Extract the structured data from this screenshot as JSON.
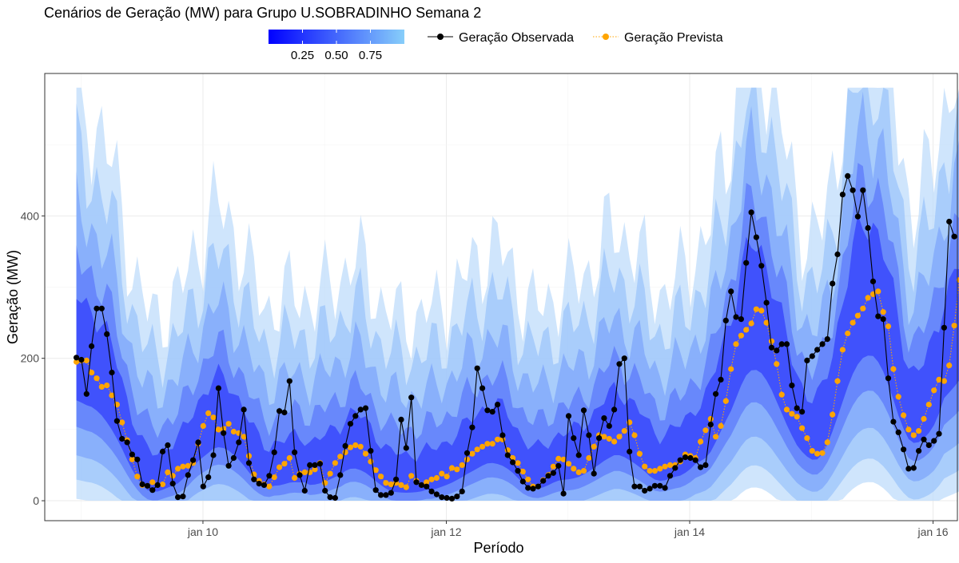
{
  "chart_data": {
    "type": "line",
    "title": "Cenários de Geração (MW) para Grupo U.SOBRADINHO Semana 2",
    "xlabel": "Período",
    "ylabel": "Geração (MW)",
    "x_ticks": [
      {
        "label": "jan 10",
        "day": 10
      },
      {
        "label": "jan 12",
        "day": 12
      },
      {
        "label": "jan 14",
        "day": 14
      },
      {
        "label": "jan 16",
        "day": 16
      }
    ],
    "y_ticks": [
      0,
      200,
      400
    ],
    "xlim_days": [
      8.7,
      16.2
    ],
    "ylim": [
      -28,
      600
    ],
    "grid": true,
    "legend_position": "top",
    "colorbar": {
      "labels": [
        "0.25",
        "0.50",
        "0.75"
      ],
      "values": [
        0.25,
        0.5,
        0.75
      ],
      "range": [
        0.0,
        1.0
      ],
      "color_low": "#0000ff",
      "color_high": "#87cefa"
    },
    "series": [
      {
        "name": "Geração Observada",
        "color": "#000000",
        "line": "solid",
        "x_start_day": 8.96,
        "x_step_days": 0.0417,
        "values": [
          201,
          198,
          150,
          217,
          270,
          270,
          234,
          180,
          112,
          87,
          82,
          65,
          58,
          23,
          21,
          15,
          22,
          69,
          78,
          24,
          5,
          6,
          36,
          57,
          82,
          20,
          33,
          64,
          158,
          95,
          49,
          60,
          82,
          128,
          53,
          30,
          24,
          22,
          35,
          68,
          126,
          124,
          168,
          68,
          36,
          14,
          50,
          50,
          52,
          14,
          5,
          4,
          36,
          77,
          108,
          119,
          128,
          130,
          70,
          15,
          8,
          8,
          11,
          30,
          114,
          74,
          145,
          26,
          22,
          20,
          13,
          9,
          5,
          4,
          3,
          6,
          13,
          67,
          103,
          186,
          158,
          127,
          125,
          135,
          92,
          64,
          54,
          42,
          27,
          18,
          17,
          20,
          28,
          35,
          39,
          49,
          10,
          119,
          88,
          64,
          127,
          92,
          38,
          88,
          116,
          105,
          128,
          192,
          200,
          69,
          20,
          20,
          14,
          17,
          21,
          21,
          18,
          35,
          46,
          57,
          61,
          60,
          57,
          47,
          50,
          107,
          150,
          170,
          253,
          294,
          258,
          255,
          334,
          405,
          370,
          330,
          278,
          215,
          211,
          220,
          220,
          162,
          130,
          125,
          197,
          203,
          212,
          220,
          227,
          305,
          346,
          430,
          456,
          436,
          399,
          436,
          383,
          308,
          259,
          255,
          172,
          111,
          96,
          72,
          45,
          46,
          70,
          86,
          78,
          84,
          94,
          243,
          392,
          371
        ],
        "point_color": "#000000"
      },
      {
        "name": "Geração Prevista",
        "color": "#ffa500",
        "line": "dotted",
        "x_start_day": 8.96,
        "x_step_days": 0.0417,
        "values": [
          195,
          197,
          197,
          180,
          172,
          160,
          162,
          148,
          135,
          110,
          85,
          58,
          34,
          22,
          21,
          26,
          22,
          23,
          40,
          35,
          45,
          48,
          49,
          53,
          80,
          105,
          123,
          117,
          100,
          101,
          108,
          97,
          95,
          90,
          63,
          37,
          28,
          23,
          20,
          33,
          47,
          52,
          60,
          32,
          38,
          40,
          40,
          44,
          53,
          25,
          38,
          53,
          62,
          68,
          75,
          78,
          76,
          66,
          55,
          43,
          34,
          25,
          23,
          25,
          22,
          19,
          35,
          28,
          22,
          26,
          30,
          32,
          38,
          34,
          46,
          44,
          50,
          58,
          66,
          72,
          76,
          80,
          80,
          86,
          86,
          71,
          60,
          53,
          41,
          30,
          20,
          20,
          29,
          36,
          48,
          59,
          58,
          52,
          45,
          40,
          42,
          60,
          76,
          92,
          90,
          87,
          83,
          90,
          98,
          110,
          92,
          66,
          48,
          42,
          42,
          45,
          48,
          50,
          50,
          55,
          65,
          63,
          60,
          83,
          99,
          115,
          90,
          105,
          140,
          185,
          220,
          232,
          240,
          249,
          269,
          267,
          250,
          224,
          192,
          149,
          128,
          122,
          118,
          102,
          88,
          70,
          66,
          67,
          82,
          121,
          168,
          212,
          235,
          250,
          260,
          270,
          285,
          290,
          294,
          265,
          245,
          185,
          146,
          120,
          100,
          92,
          98,
          115,
          135,
          155,
          170,
          168,
          190,
          246,
          310
        ],
        "point_color": "#ffa500"
      }
    ]
  }
}
